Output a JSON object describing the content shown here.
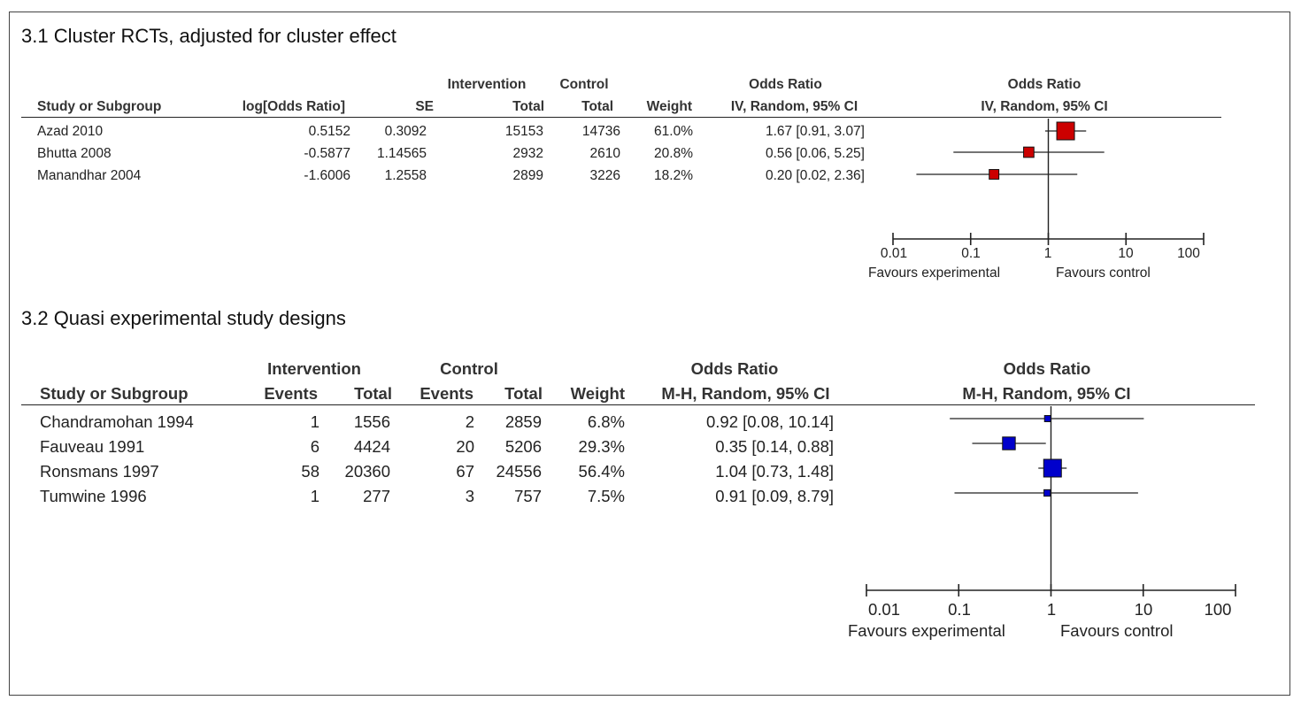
{
  "chart_data": [
    {
      "type": "forest",
      "title": "3.1 Cluster RCTs, adjusted for cluster effect",
      "header": {
        "group_row": [
          "Intervention",
          "Control",
          "Odds Ratio",
          "Odds Ratio"
        ],
        "columns": [
          "Study or Subgroup",
          "log[Odds Ratio]",
          "SE",
          "Total",
          "Total",
          "Weight",
          "IV, Random, 95% CI",
          "IV, Random, 95% CI"
        ]
      },
      "studies": [
        {
          "name": "Azad 2010",
          "log_or": "0.5152",
          "se": "0.3092",
          "int_total": "15153",
          "ctrl_total": "14736",
          "weight": "61.0%",
          "ci_text": "1.67 [0.91, 3.07]",
          "or": 1.67,
          "lo": 0.91,
          "hi": 3.07,
          "w": 61.0
        },
        {
          "name": "Bhutta 2008",
          "log_or": "-0.5877",
          "se": "1.14565",
          "int_total": "2932",
          "ctrl_total": "2610",
          "weight": "20.8%",
          "ci_text": "0.56 [0.06, 5.25]",
          "or": 0.56,
          "lo": 0.06,
          "hi": 5.25,
          "w": 20.8
        },
        {
          "name": "Manandhar  2004",
          "log_or": "-1.6006",
          "se": "1.2558",
          "int_total": "2899",
          "ctrl_total": "3226",
          "weight": "18.2%",
          "ci_text": "0.20 [0.02, 2.36]",
          "or": 0.2,
          "lo": 0.02,
          "hi": 2.36,
          "w": 18.2
        }
      ],
      "axis": {
        "scale": "log",
        "range": [
          0.01,
          100
        ],
        "ticks": [
          "0.01",
          "0.1",
          "1",
          "10",
          "100"
        ],
        "tick_values": [
          0.01,
          0.1,
          1,
          10,
          100
        ],
        "left_label": "Favours experimental",
        "right_label": "Favours control"
      },
      "marker_color": "#cc0000"
    },
    {
      "type": "forest",
      "title": "3.2 Quasi experimental study designs",
      "header": {
        "group_row": [
          "Intervention",
          "Control",
          "Odds Ratio",
          "Odds Ratio"
        ],
        "columns": [
          "Study or Subgroup",
          "Events",
          "Total",
          "Events",
          "Total",
          "Weight",
          "M-H, Random, 95% CI",
          "M-H, Random, 95% CI"
        ]
      },
      "studies": [
        {
          "name": "Chandramohan 1994",
          "int_events": "1",
          "int_total": "1556",
          "ctrl_events": "2",
          "ctrl_total": "2859",
          "weight": "6.8%",
          "ci_text": "0.92 [0.08, 10.14]",
          "or": 0.92,
          "lo": 0.08,
          "hi": 10.14,
          "w": 6.8
        },
        {
          "name": "Fauveau 1991",
          "int_events": "6",
          "int_total": "4424",
          "ctrl_events": "20",
          "ctrl_total": "5206",
          "weight": "29.3%",
          "ci_text": "0.35 [0.14, 0.88]",
          "or": 0.35,
          "lo": 0.14,
          "hi": 0.88,
          "w": 29.3
        },
        {
          "name": "Ronsmans 1997",
          "int_events": "58",
          "int_total": "20360",
          "ctrl_events": "67",
          "ctrl_total": "24556",
          "weight": "56.4%",
          "ci_text": "1.04 [0.73, 1.48]",
          "or": 1.04,
          "lo": 0.73,
          "hi": 1.48,
          "w": 56.4
        },
        {
          "name": "Tumwine 1996",
          "int_events": "1",
          "int_total": "277",
          "ctrl_events": "3",
          "ctrl_total": "757",
          "weight": "7.5%",
          "ci_text": "0.91 [0.09, 8.79]",
          "or": 0.91,
          "lo": 0.09,
          "hi": 8.79,
          "w": 7.5
        }
      ],
      "axis": {
        "scale": "log",
        "range": [
          0.01,
          100
        ],
        "ticks": [
          "0.01",
          "0.1",
          "1",
          "10",
          "100"
        ],
        "tick_values": [
          0.01,
          0.1,
          1,
          10,
          100
        ],
        "left_label": "Favours experimental",
        "right_label": "Favours control"
      },
      "marker_color": "#0000cc"
    }
  ]
}
